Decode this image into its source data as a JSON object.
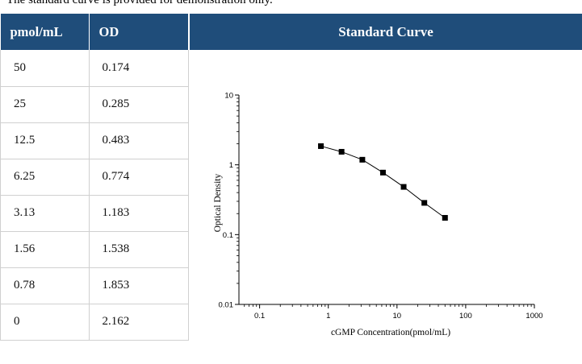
{
  "clipped_caption": "The standard curve is provided for demonstration only.",
  "table": {
    "headers": [
      "pmol/mL",
      "OD"
    ],
    "rows": [
      [
        "50",
        "0.174"
      ],
      [
        "25",
        "0.285"
      ],
      [
        "12.5",
        "0.483"
      ],
      [
        "6.25",
        "0.774"
      ],
      [
        "3.13",
        "1.183"
      ],
      [
        "1.56",
        "1.538"
      ],
      [
        "0.78",
        "1.853"
      ],
      [
        "0",
        "2.162"
      ]
    ]
  },
  "chart_header": "Standard Curve",
  "chart_data": {
    "type": "line",
    "title": "Standard Curve",
    "xlabel": "cGMP Concentration(pmol/mL)",
    "ylabel": "Optical Density",
    "x_scale": "log",
    "y_scale": "log",
    "xlim": [
      0.05,
      1000
    ],
    "ylim": [
      0.01,
      10
    ],
    "x_ticks": [
      "0.1",
      "1",
      "10",
      "100",
      "1000"
    ],
    "y_ticks": [
      "0.01",
      "0.1",
      "1",
      "10"
    ],
    "series": [
      {
        "x": [
          0.78,
          1.56,
          3.13,
          6.25,
          12.5,
          25,
          50
        ],
        "y": [
          1.853,
          1.538,
          1.183,
          0.774,
          0.483,
          0.285,
          0.174
        ]
      }
    ],
    "marker": "square",
    "line_color": "#000000",
    "grid": false,
    "legend": "none"
  }
}
